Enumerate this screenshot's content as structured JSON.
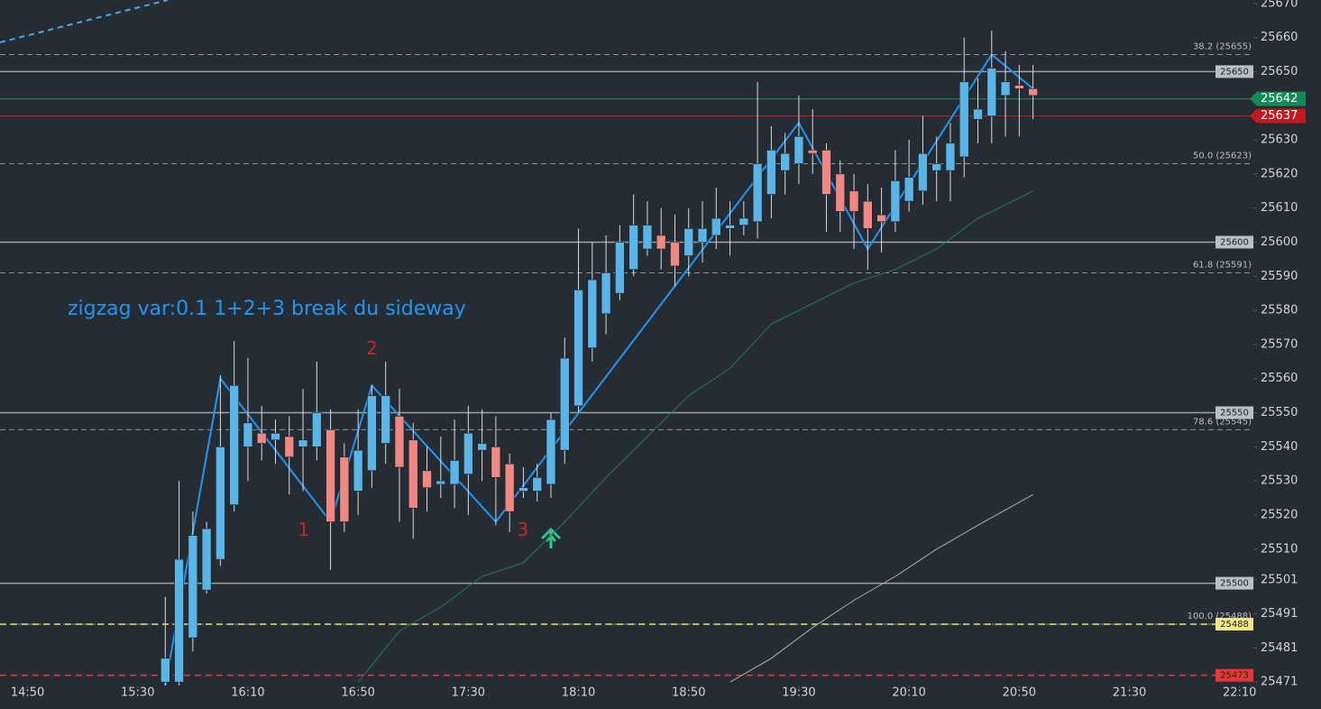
{
  "chart_data": {
    "type": "candlestick",
    "annotation": "zigzag var:0.1 1+2+3 break du sideway",
    "pivot_labels": [
      "1",
      "2",
      "3"
    ],
    "up_color": "#5ab4e6",
    "down_color": "#ef8783",
    "x": [
      "15:40",
      "15:45",
      "15:50",
      "15:55",
      "16:00",
      "16:05",
      "16:10",
      "16:15",
      "16:20",
      "16:25",
      "16:30",
      "16:35",
      "16:40",
      "16:45",
      "16:50",
      "16:55",
      "17:00",
      "17:05",
      "17:10",
      "17:15",
      "17:20",
      "17:25",
      "17:30",
      "17:35",
      "17:40",
      "17:45",
      "17:50",
      "17:55",
      "18:00",
      "18:05",
      "18:10",
      "18:15",
      "18:20",
      "18:25",
      "18:30",
      "18:35",
      "18:40",
      "18:45",
      "18:50",
      "18:55",
      "19:00",
      "19:05",
      "19:10",
      "19:15",
      "19:20",
      "19:25",
      "19:30",
      "19:35",
      "19:40",
      "19:45",
      "19:50",
      "19:55",
      "20:00",
      "20:05",
      "20:10",
      "20:15",
      "20:20",
      "20:25",
      "20:30",
      "20:35",
      "20:40",
      "20:45",
      "20:50",
      "20:55"
    ],
    "open": [
      25471,
      25471,
      25484,
      25498,
      25507,
      25523,
      25540,
      25544,
      25542,
      25543,
      25540,
      25540,
      25545,
      25537,
      25527,
      25533,
      25541,
      25549,
      25542,
      25533,
      25529,
      25529,
      25532,
      25539,
      25540,
      25535,
      25527,
      25527,
      25529,
      25539,
      25552,
      25569,
      25579,
      25585,
      25592,
      25598,
      25602,
      25600,
      25596,
      25600,
      25602,
      25604,
      25605,
      25606,
      25614,
      25621,
      25623,
      25627,
      25627,
      25620,
      25615,
      25612,
      25608,
      25606,
      25612,
      25615,
      25621,
      25621,
      25625,
      25636,
      25637,
      25643,
      25646,
      25645
    ],
    "high": [
      25496,
      25530,
      25521,
      25518,
      25561,
      25571,
      25566,
      25552,
      25548,
      25549,
      25557,
      25565,
      25551,
      25541,
      25551,
      25558,
      25565,
      25557,
      25547,
      25540,
      25543,
      25548,
      25552,
      25551,
      25549,
      25538,
      25534,
      25535,
      25550,
      25572,
      25604,
      25600,
      25602,
      25605,
      25614,
      25612,
      25610,
      25608,
      25610,
      25612,
      25616,
      25612,
      25612,
      25647,
      25634,
      25632,
      25643,
      25639,
      25629,
      25624,
      25620,
      25617,
      25616,
      25627,
      25630,
      25637,
      25631,
      25635,
      25660,
      25648,
      25662,
      25656,
      25652,
      25652
    ],
    "low": [
      25470,
      25470,
      25480,
      25497,
      25505,
      25521,
      25530,
      25536,
      25535,
      25526,
      25527,
      25536,
      25504,
      25515,
      25520,
      25528,
      25535,
      25518,
      25513,
      25521,
      25525,
      25522,
      25520,
      25530,
      25517,
      25515,
      25525,
      25524,
      25525,
      25535,
      25550,
      25565,
      25573,
      25583,
      25590,
      25596,
      25592,
      25587,
      25590,
      25594,
      25598,
      25596,
      25602,
      25601,
      25607,
      25614,
      25617,
      25620,
      25603,
      25603,
      25598,
      25592,
      25597,
      25603,
      25609,
      25611,
      25612,
      25612,
      25619,
      25629,
      25629,
      25631,
      25631,
      25636
    ],
    "close": [
      25478,
      25507,
      25514,
      25516,
      25540,
      25558,
      25547,
      25541,
      25544,
      25537,
      25542,
      25550,
      25518,
      25518,
      25539,
      25555,
      25555,
      25534,
      25522,
      25528,
      25530,
      25536,
      25544,
      25541,
      25531,
      25521,
      25528,
      25531,
      25548,
      25566,
      25586,
      25589,
      25591,
      25600,
      25605,
      25605,
      25598,
      25593,
      25604,
      25604,
      25607,
      25605,
      25607,
      25623,
      25627,
      25626,
      25631,
      25626,
      25614,
      25609,
      25609,
      25604,
      25606,
      25618,
      25619,
      25626,
      25623,
      25629,
      25647,
      25639,
      25651,
      25647,
      25645,
      25643
    ],
    "series": [
      {
        "color": "#2196f3",
        "x": [
          "15:40",
          "16:00",
          "16:40",
          "16:55",
          "17:40",
          "19:30",
          "19:55",
          "20:40",
          "20:55"
        ],
        "values": [
          25470,
          25560,
          25518,
          25558,
          25518,
          25635,
          25598,
          25655,
          25645
        ]
      },
      {
        "color": "#1f7a52",
        "x": [
          "16:50",
          "17:05",
          "17:20",
          "17:35",
          "17:50",
          "18:05",
          "18:20",
          "18:35",
          "18:50",
          "19:05",
          "19:20",
          "19:35",
          "19:50",
          "20:05",
          "20:20",
          "20:35",
          "20:55"
        ],
        "values": [
          25471,
          25486,
          25493,
          25502,
          25506,
          25518,
          25531,
          25543,
          25555,
          25563,
          25576,
          25582,
          25588,
          25592,
          25598,
          25607,
          25615
        ]
      },
      {
        "color": "#a9b0b8",
        "x": [
          "19:05",
          "19:20",
          "19:35",
          "19:50",
          "20:05",
          "20:20",
          "20:35",
          "20:55"
        ],
        "values": [
          25471,
          25478,
          25487,
          25495,
          25502,
          25510,
          25517,
          25526
        ]
      }
    ],
    "levels": [
      {
        "value": 25650,
        "color": "#9aa3ab",
        "tag_color": "#b8c0c8",
        "dashed": false
      },
      {
        "value": 25600,
        "color": "#9aa3ab",
        "tag_color": "#b8c0c8",
        "dashed": false
      },
      {
        "value": 25550,
        "color": "#9aa3ab",
        "tag_color": "#b8c0c8",
        "dashed": false
      },
      {
        "value": 25500,
        "color": "#9aa3ab",
        "tag_color": "#b8c0c8",
        "dashed": false
      },
      {
        "value": 25488,
        "color": "#f2e36b",
        "tag_color": "#f2e68a",
        "dashed": true
      },
      {
        "value": 25473,
        "color": "#e53935",
        "tag_color": "#e53935",
        "dashed": true
      }
    ],
    "fib_levels": [
      {
        "value": 25655,
        "label": "38.2 (25655)"
      },
      {
        "value": 25623,
        "label": "50.0 (25623)"
      },
      {
        "value": 25591,
        "label": "61.8 (25591)"
      },
      {
        "value": 25545,
        "label": "78.6 (25545)"
      },
      {
        "value": 25488,
        "label": "100.0 (25488)"
      }
    ],
    "price_tags": [
      {
        "value": 25642,
        "color": "#138a57"
      },
      {
        "value": 25637,
        "color": "#c3181d"
      }
    ],
    "ylim": [
      25470,
      25671
    ],
    "yticks": [
      25670,
      25660,
      25650,
      25630,
      25620,
      25610,
      25600,
      25590,
      25580,
      25570,
      25560,
      25550,
      25540,
      25530,
      25520,
      25510,
      25501,
      25491,
      25481,
      25471
    ],
    "xlim": [
      "14:40",
      "22:15"
    ],
    "xticks": [
      "14:50",
      "15:30",
      "16:10",
      "16:50",
      "17:30",
      "18:10",
      "18:50",
      "19:30",
      "20:10",
      "20:50",
      "21:30",
      "22:10"
    ]
  }
}
